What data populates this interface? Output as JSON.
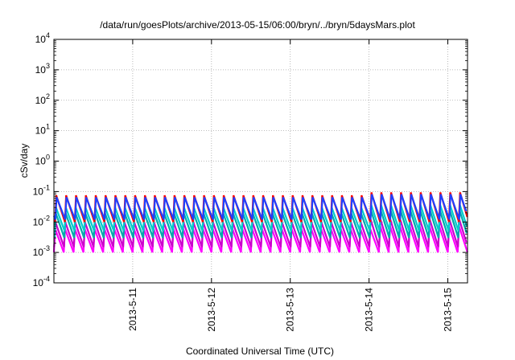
{
  "chart_data": {
    "type": "line",
    "title": "/data/run/goesPlots/archive/2013-05-15/06:00/bryn/../bryn/5daysMars.plot",
    "xlabel": "Coordinated Universal Time (UTC)",
    "ylabel": "cSv/day",
    "y_scale": "log",
    "ylim": [
      0.0001,
      10000
    ],
    "y_ticks": [
      {
        "base": "10",
        "exp": "4",
        "value": 10000
      },
      {
        "base": "10",
        "exp": "3",
        "value": 1000
      },
      {
        "base": "10",
        "exp": "2",
        "value": 100
      },
      {
        "base": "10",
        "exp": "1",
        "value": 10
      },
      {
        "base": "10",
        "exp": "0",
        "value": 1
      },
      {
        "base": "10",
        "exp": "-1",
        "value": 0.1
      },
      {
        "base": "10",
        "exp": "-2",
        "value": 0.01
      },
      {
        "base": "10",
        "exp": "-3",
        "value": 0.001
      },
      {
        "base": "10",
        "exp": "-4",
        "value": 0.0001
      }
    ],
    "xlim": [
      "2013-05-10T00:00",
      "2013-05-15T06:00"
    ],
    "x_ticks": [
      {
        "label": "2013-5-11",
        "value": "2013-05-11T00:00"
      },
      {
        "label": "2013-5-12",
        "value": "2013-05-12T00:00"
      },
      {
        "label": "2013-5-13",
        "value": "2013-05-13T00:00"
      },
      {
        "label": "2013-5-14",
        "value": "2013-05-14T00:00"
      },
      {
        "label": "2013-5-15",
        "value": "2013-05-15T00:00"
      }
    ],
    "grid": true,
    "period_hours": 3,
    "series": [
      {
        "color": "#ff00ff",
        "peak": 0.006,
        "trough": 0.001
      },
      {
        "color": "#cc00cc",
        "peak": 0.01,
        "trough": 0.0015
      },
      {
        "color": "#00aaaa",
        "peak": 0.02,
        "trough": 0.003
      },
      {
        "color": "#00cccc",
        "peak": 0.03,
        "trough": 0.005
      },
      {
        "color": "#ff0000",
        "peak": 0.075,
        "trough": 0.01
      },
      {
        "color": "#2040ff",
        "peak": 0.065,
        "trough": 0.012
      }
    ]
  }
}
